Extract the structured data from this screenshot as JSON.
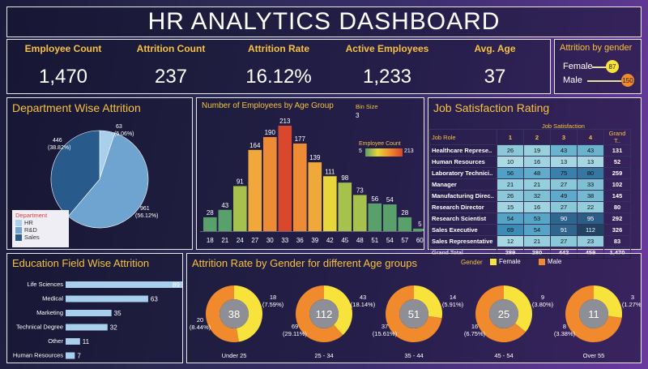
{
  "title": "HR ANALYTICS DASHBOARD",
  "kpis": [
    {
      "label": "Employee Count",
      "value": "1,470"
    },
    {
      "label": "Attrition Count",
      "value": "237"
    },
    {
      "label": "Attrition Rate",
      "value": "16.12%"
    },
    {
      "label": "Active Employees",
      "value": "1,233"
    },
    {
      "label": "Avg. Age",
      "value": "37"
    }
  ],
  "gender_attrition": {
    "title": "Attrition by gender",
    "female_label": "Female",
    "female_value": "87",
    "male_label": "Male",
    "male_value": "150"
  },
  "department": {
    "title": "Department Wise Attrition",
    "legend_title": "Department",
    "slices": [
      {
        "name": "HR",
        "label": "63",
        "pct": "(5.06%)",
        "value": 5.06,
        "color": "#a8d0ec"
      },
      {
        "name": "R&D",
        "label": "961",
        "pct": "(56.12%)",
        "value": 56.12,
        "color": "#6fa3d0"
      },
      {
        "name": "Sales",
        "label": "446",
        "pct": "(38.82%)",
        "value": 38.82,
        "color": "#285a8c"
      }
    ]
  },
  "age_group": {
    "title": "Number of Employees by Age Group",
    "bin_label": "Bin Size",
    "bin_value": "3",
    "legend_title": "Employee Count",
    "legend_min": "5",
    "legend_max": "213"
  },
  "chart_data": {
    "type": "bar",
    "title": "Number of Employees by Age Group",
    "categories": [
      "18",
      "21",
      "24",
      "27",
      "30",
      "33",
      "36",
      "39",
      "42",
      "45",
      "48",
      "51",
      "54",
      "57",
      "60"
    ],
    "values": [
      28,
      43,
      91,
      164,
      190,
      213,
      177,
      139,
      111,
      98,
      73,
      56,
      54,
      28,
      5
    ],
    "ylim": [
      0,
      213
    ]
  },
  "job_satisfaction": {
    "title": "Job Satisfaction Rating",
    "group_header": "Job Satisfaction",
    "col_header": "Job Role",
    "columns": [
      "1",
      "2",
      "3",
      "4"
    ],
    "total_header": "Grand T..",
    "rows": [
      {
        "role": "Healthcare Represe..",
        "v": [
          "26",
          "19",
          "43",
          "43"
        ],
        "total": "131"
      },
      {
        "role": "Human Resources",
        "v": [
          "10",
          "16",
          "13",
          "13"
        ],
        "total": "52"
      },
      {
        "role": "Laboratory Technici..",
        "v": [
          "56",
          "48",
          "75",
          "80"
        ],
        "total": "259"
      },
      {
        "role": "Manager",
        "v": [
          "21",
          "21",
          "27",
          "33"
        ],
        "total": "102"
      },
      {
        "role": "Manufacturing Direc..",
        "v": [
          "26",
          "32",
          "49",
          "38"
        ],
        "total": "145"
      },
      {
        "role": "Research Director",
        "v": [
          "15",
          "16",
          "27",
          "22"
        ],
        "total": "80"
      },
      {
        "role": "Research Scientist",
        "v": [
          "54",
          "53",
          "90",
          "95"
        ],
        "total": "292"
      },
      {
        "role": "Sales Executive",
        "v": [
          "69",
          "54",
          "91",
          "112"
        ],
        "total": "326"
      },
      {
        "role": "Sales Representative",
        "v": [
          "12",
          "21",
          "27",
          "23"
        ],
        "total": "83"
      }
    ],
    "grand_label": "Grand Total",
    "grand": [
      "289",
      "280",
      "442",
      "459"
    ],
    "grand_total": "1,470"
  },
  "education": {
    "title": "Education Field Wise Attrition",
    "items": [
      {
        "label": "Life Sciences",
        "value": 89
      },
      {
        "label": "Medical",
        "value": 63
      },
      {
        "label": "Marketing",
        "value": 35
      },
      {
        "label": "Technical Degree",
        "value": 32
      },
      {
        "label": "Other",
        "value": 11
      },
      {
        "label": "Human Resources",
        "value": 7
      }
    ]
  },
  "gender_age": {
    "title": "Attrition Rate by Gender for different Age groups",
    "legend_gender": "Gender",
    "legend_female": "Female",
    "legend_male": "Male",
    "female_color": "#f8e23c",
    "male_color": "#f08a2c",
    "groups": [
      {
        "name": "Under 25",
        "total": "38",
        "f": "18",
        "fp": "(7.59%)",
        "m": "20",
        "mp": "(8.44%)",
        "fv": 18,
        "mv": 20
      },
      {
        "name": "25 - 34",
        "total": "112",
        "f": "43",
        "fp": "(18.14%)",
        "m": "69",
        "mp": "(29.11%)",
        "fv": 43,
        "mv": 69
      },
      {
        "name": "35 - 44",
        "total": "51",
        "f": "14",
        "fp": "(5.91%)",
        "m": "37",
        "mp": "(15.61%)",
        "fv": 14,
        "mv": 37
      },
      {
        "name": "45 - 54",
        "total": "25",
        "f": "9",
        "fp": "(3.80%)",
        "m": "16",
        "mp": "(6.75%)",
        "fv": 9,
        "mv": 16
      },
      {
        "name": "Over 55",
        "total": "11",
        "f": "3",
        "fp": "(1.27%)",
        "m": "8",
        "mp": "(3.38%)",
        "fv": 3,
        "mv": 8
      }
    ]
  }
}
